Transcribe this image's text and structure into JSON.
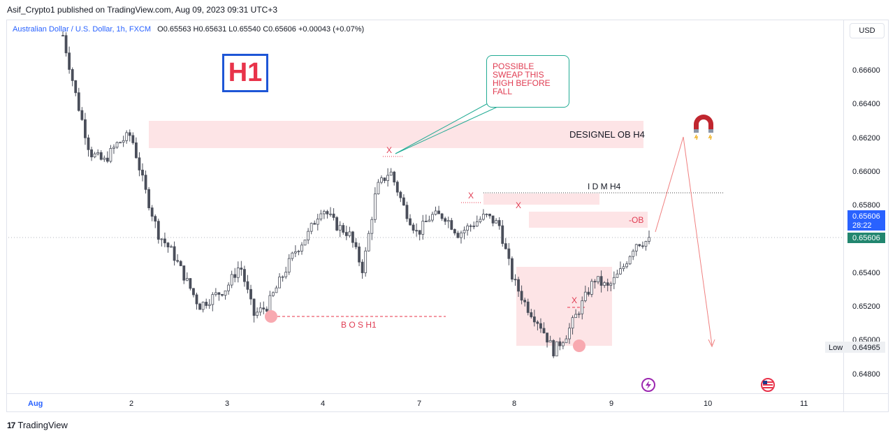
{
  "header": {
    "publisher": "Asif_Crypto1 published on TradingView.com, Aug 09, 2023 09:31 UTC+3",
    "symbol": "Australian Dollar / U.S. Dollar, 1h, FXCM",
    "ohlc": "O0.65563  H0.65631  L0.65540  C0.65606  +0.00043 (+0.07%)",
    "currency_button": "USD"
  },
  "timeframe_label": "H1",
  "annotations": {
    "callout": "POSSIBLE SWEAP THIS HIGH BEFORE FALL",
    "designel_ob": "DESIGNEL OB H4",
    "idm": "I D M H4",
    "ob": "-OB",
    "bos": "B O S H1",
    "x_marks": [
      "X",
      "X",
      "X",
      "X"
    ]
  },
  "price_axis": {
    "labels": [
      "0.66600",
      "0.66400",
      "0.66200",
      "0.66000",
      "0.65800",
      "0.65400",
      "0.65200",
      "0.65000",
      "0.64800"
    ],
    "current_price": "0.65606",
    "countdown": "28:22",
    "close_price": "0.65606",
    "low_label": "Low",
    "low_value": "0.64965"
  },
  "time_axis": [
    "Aug",
    "2",
    "3",
    "4",
    "7",
    "8",
    "9",
    "10",
    "11"
  ],
  "footer": {
    "brand": "TradingView",
    "brand_mark": "17"
  },
  "colors": {
    "candle": "#4a4e5a",
    "zone_fill": "#fde4e6",
    "accent_red": "#f08080",
    "label_red": "#e03c52",
    "callout_border": "#22ab94",
    "price_badge": "#2962ff",
    "close_badge": "#22866f"
  },
  "chart_data": {
    "type": "candlestick",
    "symbol": "AUDUSD",
    "interval": "1h",
    "x_labels": [
      "Aug",
      "2",
      "3",
      "4",
      "7",
      "8",
      "9",
      "10",
      "11"
    ],
    "y_range": [
      0.6477,
      0.6683
    ],
    "approx_closes": [
      0.6675,
      0.664,
      0.661,
      0.6605,
      0.6615,
      0.662,
      0.659,
      0.6565,
      0.6555,
      0.654,
      0.6525,
      0.653,
      0.6535,
      0.6548,
      0.652,
      0.6525,
      0.654,
      0.6555,
      0.6565,
      0.658,
      0.657,
      0.6565,
      0.6545,
      0.659,
      0.66,
      0.658,
      0.6565,
      0.6575,
      0.6575,
      0.6565,
      0.657,
      0.6575,
      0.657,
      0.654,
      0.6525,
      0.6515,
      0.65,
      0.651,
      0.6525,
      0.654,
      0.6535,
      0.6545,
      0.656,
      0.6561
    ],
    "levels": [
      {
        "name": "DESIGNEL OB H4",
        "from": 0.6614,
        "to": 0.663
      },
      {
        "name": "I D M H4",
        "value": 0.65875
      },
      {
        "name": "-OB",
        "from": 0.657,
        "to": 0.658
      },
      {
        "name": "B O S H1",
        "value": 0.65148
      },
      {
        "name": "Low",
        "value": 0.64965
      }
    ],
    "last_price": 0.65606
  }
}
